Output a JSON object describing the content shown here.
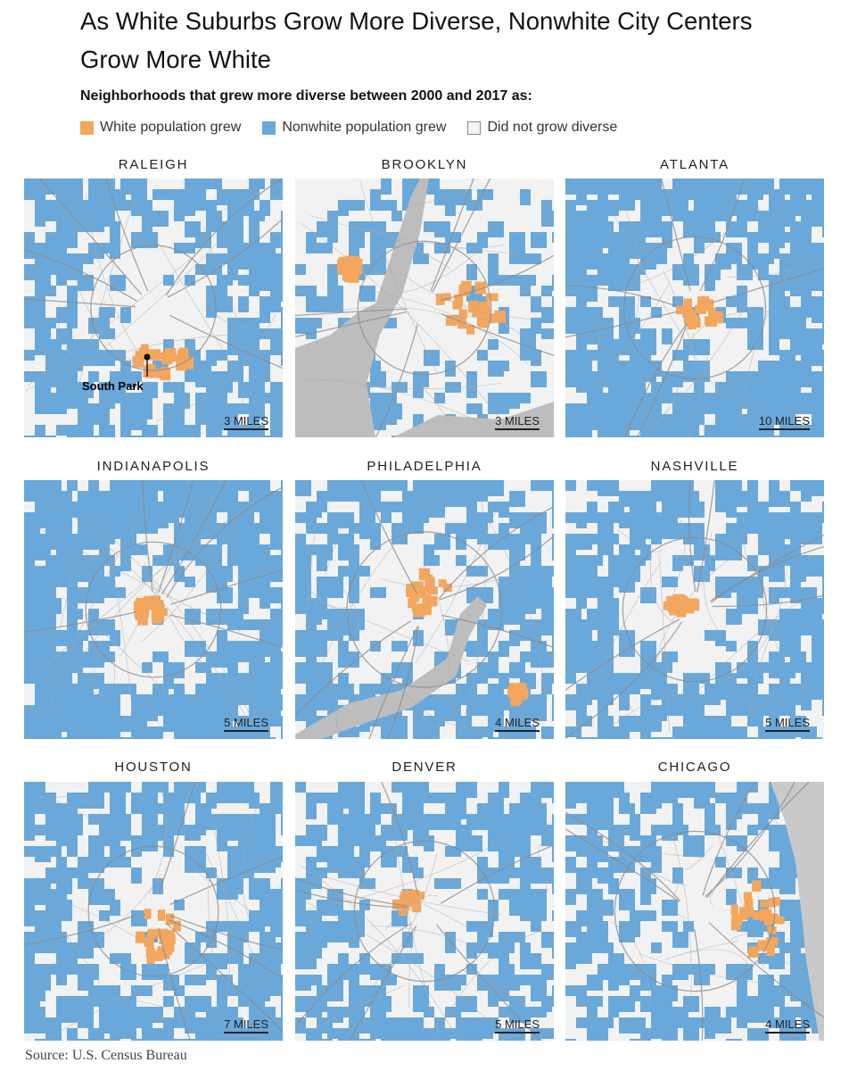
{
  "title": "As White Suburbs Grow More Diverse, Nonwhite City Centers Grow More White",
  "subtitle": "Neighborhoods that grew more diverse between 2000 and 2017 as:",
  "legend": [
    {
      "label": "White population grew",
      "color": "#f4a65d"
    },
    {
      "label": "Nonwhite population grew",
      "color": "#6aa8d9"
    },
    {
      "label": "Did not grow diverse",
      "color": "#f4f4f4"
    }
  ],
  "colors": {
    "white_grew": "#f4a65d",
    "nonwhite_grew": "#6aa8d9",
    "none": "#f4f4f4",
    "road": "#8a8a8a",
    "water": "#bdbdbd"
  },
  "maps": [
    {
      "city": "RALEIGH",
      "scale": "3 MILES",
      "marker": "South Park"
    },
    {
      "city": "BROOKLYN",
      "scale": "3 MILES"
    },
    {
      "city": "ATLANTA",
      "scale": "10 MILES"
    },
    {
      "city": "INDIANAPOLIS",
      "scale": "5 MILES"
    },
    {
      "city": "PHILADELPHIA",
      "scale": "4 MILES"
    },
    {
      "city": "NASHVILLE",
      "scale": "5 MILES"
    },
    {
      "city": "HOUSTON",
      "scale": "7 MILES"
    },
    {
      "city": "DENVER",
      "scale": "5 MILES"
    },
    {
      "city": "CHICAGO",
      "scale": "4 MILES"
    }
  ],
  "source": "Source: U.S. Census Bureau"
}
